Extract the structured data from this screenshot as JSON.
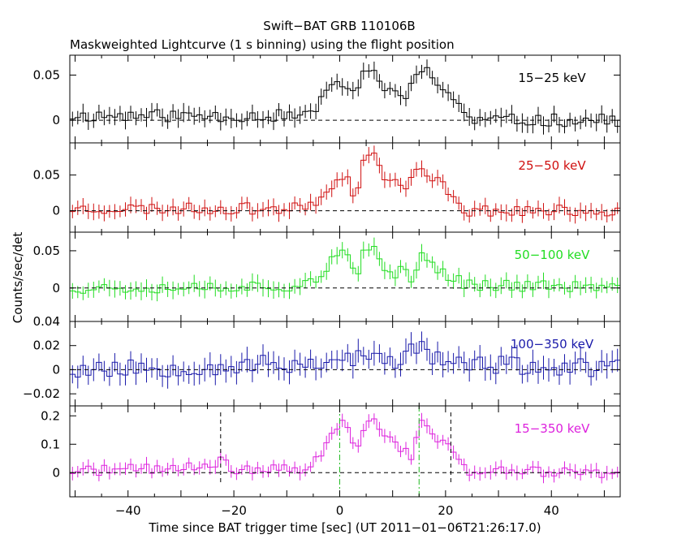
{
  "title": "Swift−BAT GRB 110106B",
  "subtitle": "Maskweighted Lightcurve (1 s binning) using the flight position",
  "chart_data": {
    "type": "line",
    "ylabel": "Counts/sec/det",
    "xlabel": "Time since BAT trigger time [sec] (UT 2011−01−06T21:26:17.0)",
    "xlim": [
      -51,
      53
    ],
    "x_ticks": [
      -40,
      -20,
      0,
      20,
      40
    ],
    "x_tick_labels": [
      "−40",
      "−20",
      "0",
      "20",
      "40"
    ],
    "panels": [
      {
        "name": "15−25 keV",
        "color": "#000000",
        "ylim": [
          -0.025,
          0.072
        ],
        "yticks": [
          0,
          0.05
        ],
        "ytick_labels": [
          "0",
          "0.05"
        ],
        "knots": [
          [
            -51,
            0.005
          ],
          [
            -6,
            0.005
          ],
          [
            -2,
            0.03
          ],
          [
            0,
            0.045
          ],
          [
            3,
            0.03
          ],
          [
            5,
            0.055
          ],
          [
            7,
            0.05
          ],
          [
            8,
            0.03
          ],
          [
            10,
            0.045
          ],
          [
            12,
            0.02
          ],
          [
            14,
            0.04
          ],
          [
            16,
            0.06
          ],
          [
            18,
            0.045
          ],
          [
            20,
            0.03
          ],
          [
            22,
            0.025
          ],
          [
            24,
            0.0
          ],
          [
            53,
            0.0
          ]
        ],
        "noise": 0.007,
        "err": 0.009,
        "seed": 11
      },
      {
        "name": "25−50 keV",
        "color": "#d01010",
        "ylim": [
          -0.03,
          0.095
        ],
        "yticks": [
          0,
          0.05
        ],
        "ytick_labels": [
          "0",
          "0.05"
        ],
        "knots": [
          [
            -51,
            0.003
          ],
          [
            -8,
            0.003
          ],
          [
            -3,
            0.02
          ],
          [
            0,
            0.055
          ],
          [
            2,
            0.04
          ],
          [
            3,
            0.005
          ],
          [
            4,
            0.07
          ],
          [
            6,
            0.08
          ],
          [
            8,
            0.055
          ],
          [
            10,
            0.04
          ],
          [
            12,
            0.035
          ],
          [
            14,
            0.045
          ],
          [
            15,
            0.06
          ],
          [
            17,
            0.045
          ],
          [
            20,
            0.035
          ],
          [
            22,
            0.015
          ],
          [
            24,
            0.0
          ],
          [
            53,
            0.0
          ]
        ],
        "noise": 0.008,
        "err": 0.01,
        "seed": 23
      },
      {
        "name": "50−100 keV",
        "color": "#22dd22",
        "ylim": [
          -0.045,
          0.075
        ],
        "yticks": [
          0,
          0.05
        ],
        "ytick_labels": [
          "0",
          "0.05"
        ],
        "knots": [
          [
            -51,
            0.0
          ],
          [
            -8,
            0.003
          ],
          [
            -3,
            0.02
          ],
          [
            0,
            0.05
          ],
          [
            2,
            0.035
          ],
          [
            3,
            0.005
          ],
          [
            4,
            0.04
          ],
          [
            6,
            0.055
          ],
          [
            8,
            0.03
          ],
          [
            10,
            0.015
          ],
          [
            12,
            0.03
          ],
          [
            14,
            0.01
          ],
          [
            15,
            0.045
          ],
          [
            18,
            0.03
          ],
          [
            21,
            0.015
          ],
          [
            24,
            0.005
          ],
          [
            53,
            0.0
          ]
        ],
        "noise": 0.008,
        "err": 0.01,
        "seed": 37
      },
      {
        "name": "100−350 keV",
        "color": "#1a1aaa",
        "ylim": [
          -0.03,
          0.04
        ],
        "yticks": [
          -0.02,
          0,
          0.02,
          0.04
        ],
        "ytick_labels": [
          "−0.02",
          "0",
          "0.02",
          "0.04"
        ],
        "knots": [
          [
            -51,
            0.0
          ],
          [
            -5,
            0.005
          ],
          [
            0,
            0.01
          ],
          [
            5,
            0.01
          ],
          [
            10,
            0.005
          ],
          [
            15,
            0.02
          ],
          [
            20,
            0.005
          ],
          [
            53,
            0.0
          ]
        ],
        "noise": 0.008,
        "err": 0.009,
        "seed": 53
      },
      {
        "name": "15−350 keV",
        "color": "#dd22dd",
        "ylim": [
          -0.085,
          0.235
        ],
        "yticks": [
          0,
          0.1,
          0.2
        ],
        "ytick_labels": [
          "0",
          "0.1",
          "0.2"
        ],
        "knots": [
          [
            -51,
            0.005
          ],
          [
            -24,
            0.02
          ],
          [
            -22,
            0.045
          ],
          [
            -20,
            0.01
          ],
          [
            -7,
            0.01
          ],
          [
            -3,
            0.08
          ],
          [
            0,
            0.18
          ],
          [
            2,
            0.16
          ],
          [
            3,
            0.02
          ],
          [
            4,
            0.14
          ],
          [
            6,
            0.2
          ],
          [
            8,
            0.15
          ],
          [
            10,
            0.1
          ],
          [
            12,
            0.09
          ],
          [
            14,
            0.05
          ],
          [
            15,
            0.19
          ],
          [
            17,
            0.14
          ],
          [
            20,
            0.1
          ],
          [
            22,
            0.07
          ],
          [
            24,
            0.005
          ],
          [
            53,
            0.0
          ]
        ],
        "noise": 0.018,
        "err": 0.022,
        "seed": 71,
        "markers": [
          {
            "x": -22.5,
            "style": "black-dashed"
          },
          {
            "x": 0,
            "style": "green-dashdot"
          },
          {
            "x": 15,
            "style": "green-dashdot"
          },
          {
            "x": 21,
            "style": "black-dashed"
          }
        ]
      }
    ]
  }
}
